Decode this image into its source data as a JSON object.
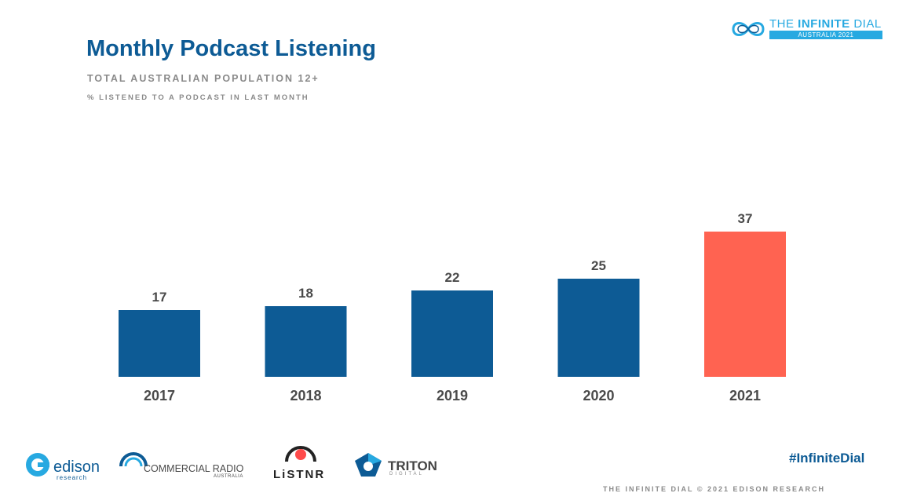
{
  "header": {
    "title": "Monthly Podcast Listening",
    "subtitle": "TOTAL AUSTRALIAN POPULATION 12+",
    "subtitle2": "% LISTENED TO A PODCAST IN LAST MONTH"
  },
  "brand": {
    "dial_title_prefix": "THE ",
    "dial_title_bold": "INFINITE",
    "dial_title_suffix": " DIAL",
    "dial_subtitle": "AUSTRALIA 2021",
    "hashtag": "#InfiniteDial",
    "footer": "THE INFINITE DIAL  © 2021 EDISON RESEARCH"
  },
  "logos": {
    "edison": "edison",
    "edison_sub": "research",
    "cra": "COMMERCIAL RADIO",
    "cra_sub": "AUSTRALIA",
    "listnr": "LiSTNR",
    "triton": "TRITON",
    "triton_sub": "DIGITAL"
  },
  "colors": {
    "primary": "#0d5b95",
    "highlight": "#ff6351",
    "accent": "#27a9e1",
    "muted": "#8a8a8a"
  },
  "chart_data": {
    "type": "bar",
    "categories": [
      "2017",
      "2018",
      "2019",
      "2020",
      "2021"
    ],
    "values": [
      17,
      18,
      22,
      25,
      37
    ],
    "highlight_index": 4,
    "title": "",
    "xlabel": "",
    "ylabel": "",
    "ylim": [
      0,
      40
    ],
    "grid": false,
    "data_labels": true,
    "legend": "none"
  }
}
